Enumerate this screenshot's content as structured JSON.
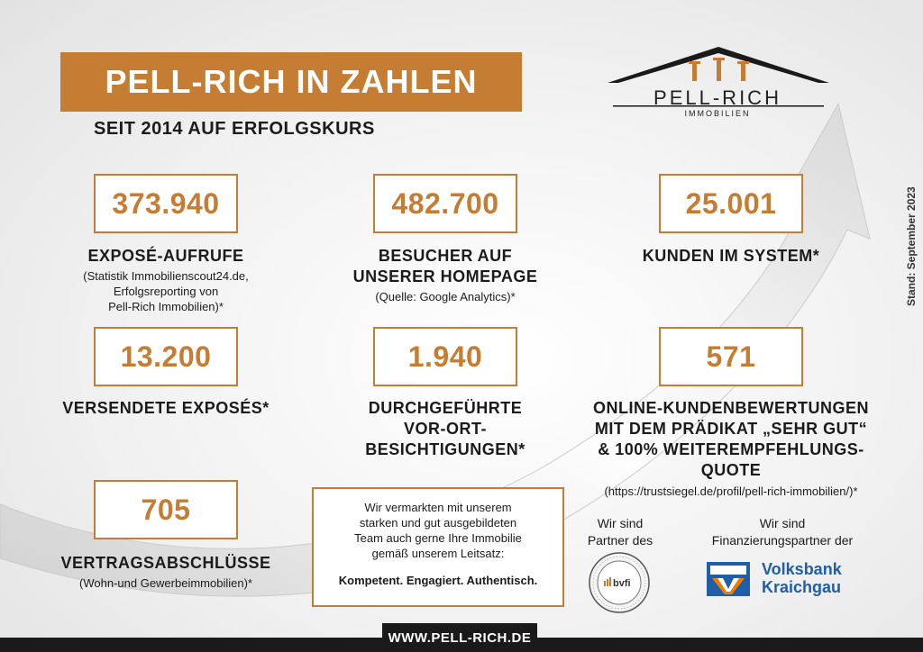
{
  "header": {
    "title": "PELL-RICH IN ZAHLEN",
    "subtitle": "SEIT 2014 AUF ERFOLGSKURS"
  },
  "logo": {
    "name": "PELL-RICH",
    "sub": "IMMOBILIEN",
    "icon": "house-roof-logo"
  },
  "stand": "Stand: September 2023",
  "stats": [
    {
      "value": "373.940",
      "label_lines": [
        "EXPOSÉ-AUFRUFE"
      ],
      "note_lines": [
        "(Statistik Immobilienscout24.de,",
        "Erfolgsreporting von",
        "Pell-Rich Immobilien)*"
      ]
    },
    {
      "value": "482.700",
      "label_lines": [
        "BESUCHER AUF",
        "UNSERER HOMEPAGE"
      ],
      "note_lines": [
        "(Quelle: Google Analytics)*"
      ]
    },
    {
      "value": "25.001",
      "label_lines": [
        "KUNDEN IM SYSTEM*"
      ],
      "note_lines": []
    },
    {
      "value": "13.200",
      "label_lines": [
        "VERSENDETE EXPOSÉS*"
      ],
      "note_lines": []
    },
    {
      "value": "1.940",
      "label_lines": [
        "DURCHGEFÜHRTE",
        "VOR-ORT-",
        "BESICHTIGUNGEN*"
      ],
      "note_lines": []
    },
    {
      "value": "571",
      "label_lines": [
        "ONLINE-KUNDENBEWERTUNGEN",
        "MIT DEM PRÄDIKAT „SEHR GUT“",
        "& 100% WEITEREMPFEHLUNGS-",
        "QUOTE"
      ],
      "note_lines": [
        "(https://trustsiegel.de/profil/pell-rich-immobilien/)*"
      ]
    },
    {
      "value": "705",
      "label_lines": [
        "VERTRAGSABSCHLÜSSE"
      ],
      "note_lines": [
        "(Wohn-und Gewerbeimmobilien)*"
      ]
    }
  ],
  "center_box": {
    "text_lines": [
      "Wir vermarkten mit unserem",
      "starken und gut ausgebildeten",
      "Team auch gerne Ihre Immobilie",
      "gemäß unserem Leitsatz:"
    ],
    "slogan": "Kompetent. Engagiert. Authentisch."
  },
  "partners": {
    "bvfi": {
      "title_lines": [
        "Wir sind",
        "Partner des"
      ],
      "seal_text": "bvfi",
      "icon": "bvfi-seal-icon"
    },
    "volksbank": {
      "title_lines": [
        "Wir sind",
        "Finanzierungspartner der"
      ],
      "name_lines": [
        "Volksbank",
        "Kraichgau"
      ],
      "icon": "volksbank-logo-icon"
    }
  },
  "colors": {
    "accent": "#c57d33",
    "dark": "#1a1a1a",
    "volksbank_blue": "#1f5fa8",
    "volksbank_orange": "#f07d00"
  },
  "footer": {
    "url": "WWW.PELL-RICH.DE"
  }
}
